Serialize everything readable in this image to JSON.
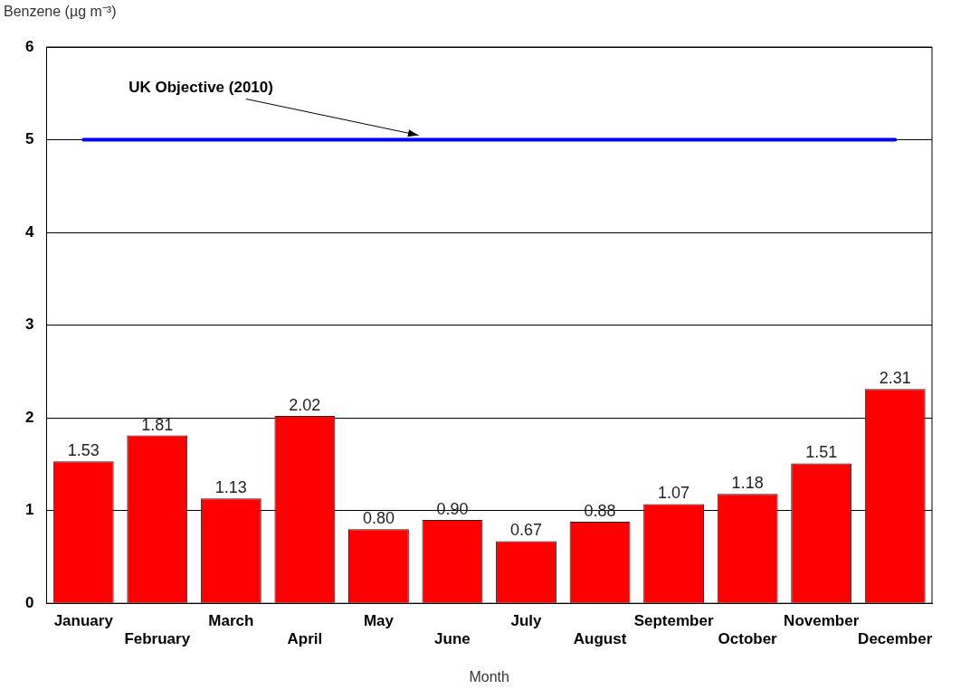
{
  "chart_data": {
    "type": "bar",
    "ylabel": "Benzene (µg m⁻³)",
    "xlabel": "Month",
    "categories": [
      "January",
      "February",
      "March",
      "April",
      "May",
      "June",
      "July",
      "August",
      "September",
      "October",
      "November",
      "December"
    ],
    "values": [
      1.53,
      1.81,
      1.13,
      2.02,
      0.8,
      0.9,
      0.67,
      0.88,
      1.07,
      1.18,
      1.51,
      2.31
    ],
    "value_labels": [
      "1.53",
      "1.81",
      "1.13",
      "2.02",
      "0.80",
      "0.90",
      "0.67",
      "0.88",
      "1.07",
      "1.18",
      "1.51",
      "2.31"
    ],
    "color": "#ff0000",
    "ylim": [
      0,
      6
    ],
    "yticks": [
      0,
      1,
      2,
      3,
      4,
      5,
      6
    ],
    "grid": "y",
    "ref_lines": [
      {
        "axis": "y",
        "value": 5,
        "label": "UK Objective (2010)",
        "color": "#0000ff"
      }
    ]
  }
}
